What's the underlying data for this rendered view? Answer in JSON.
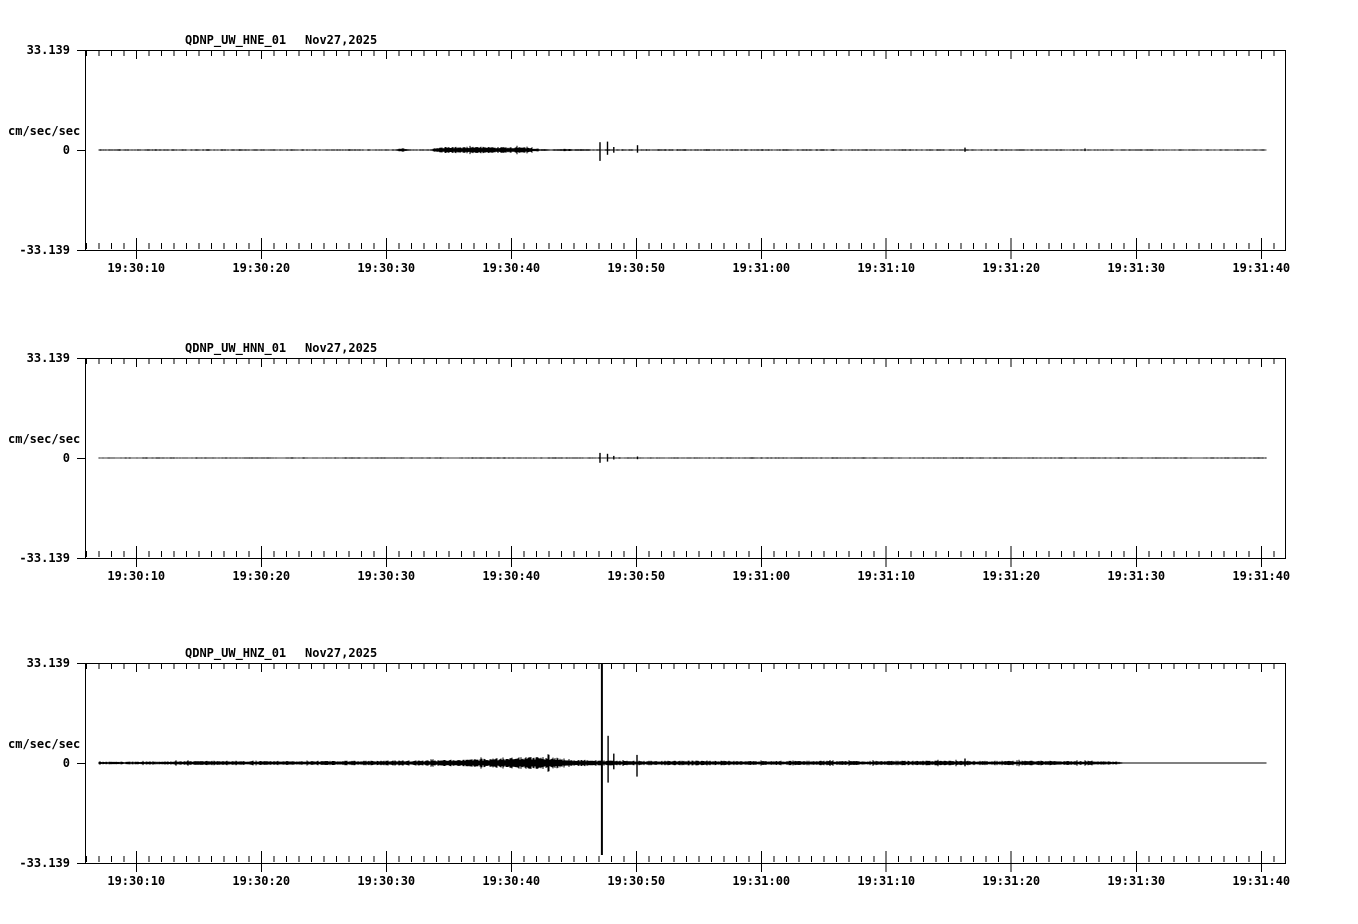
{
  "page": {
    "background_color": "#ffffff",
    "trace_color": "#000000"
  },
  "y_axis": {
    "label": "cm/sec/sec",
    "max_label": "33.139",
    "zero_label": "0",
    "min_label": "-33.139",
    "ylim": [
      -33.139,
      33.139
    ]
  },
  "x_axis": {
    "start_sec_offset": 5.9,
    "end_sec_offset": 101.9,
    "minor_tick_sec": 1,
    "major_tick_sec": 10,
    "tick_labels": [
      {
        "sec": 10,
        "label": "19:30:10"
      },
      {
        "sec": 20,
        "label": "19:30:20"
      },
      {
        "sec": 30,
        "label": "19:30:30"
      },
      {
        "sec": 40,
        "label": "19:30:40"
      },
      {
        "sec": 50,
        "label": "19:30:50"
      },
      {
        "sec": 60,
        "label": "19:31:00"
      },
      {
        "sec": 70,
        "label": "19:31:10"
      },
      {
        "sec": 80,
        "label": "19:31:20"
      },
      {
        "sec": 90,
        "label": "19:31:30"
      },
      {
        "sec": 100,
        "label": "19:31:40"
      }
    ]
  },
  "chart_data": [
    {
      "type": "line",
      "title": "QDNP_UW_HNE_01",
      "date": "Nov27,2025",
      "ylabel": "cm/sec/sec",
      "ylim": [
        -33.139,
        33.139
      ],
      "trace_start_sec": 7.0,
      "trace_end_sec": 100.4,
      "seed": 11,
      "envelope": [
        [
          7,
          0.18
        ],
        [
          30.8,
          0.18
        ],
        [
          31.3,
          0.55
        ],
        [
          31.8,
          0.18
        ],
        [
          33.6,
          0.2
        ],
        [
          34.2,
          0.72
        ],
        [
          35.5,
          0.8
        ],
        [
          38.5,
          0.82
        ],
        [
          41.2,
          0.7
        ],
        [
          42.2,
          0.25
        ],
        [
          43.6,
          0.2
        ],
        [
          44.4,
          0.32
        ],
        [
          45.0,
          0.2
        ],
        [
          45.8,
          0.28
        ],
        [
          46.3,
          0.18
        ],
        [
          100.4,
          0.16
        ]
      ],
      "spikes": [
        [
          47.1,
          2.6,
          3.6
        ],
        [
          47.7,
          2.8,
          1.6
        ],
        [
          48.2,
          1.0,
          0.9
        ],
        [
          50.1,
          1.6,
          0.9
        ],
        [
          76.3,
          0.8,
          0.6
        ],
        [
          85.9,
          0.5,
          0.35
        ]
      ]
    },
    {
      "type": "line",
      "title": "QDNP_UW_HNN_01",
      "date": "Nov27,2025",
      "ylabel": "cm/sec/sec",
      "ylim": [
        -33.139,
        33.139
      ],
      "trace_start_sec": 7.0,
      "trace_end_sec": 100.4,
      "seed": 22,
      "envelope": [
        [
          7,
          0.15
        ],
        [
          100.4,
          0.15
        ]
      ],
      "spikes": [
        [
          47.1,
          1.7,
          1.6
        ],
        [
          47.7,
          1.4,
          1.2
        ],
        [
          48.2,
          0.7,
          0.5
        ],
        [
          50.1,
          0.5,
          0.4
        ]
      ]
    },
    {
      "type": "line",
      "title": "QDNP_UW_HNZ_01",
      "date": "Nov27,2025",
      "ylabel": "cm/sec/sec",
      "ylim": [
        -33.139,
        33.139
      ],
      "trace_start_sec": 7.0,
      "trace_end_sec": 100.4,
      "seed": 33,
      "envelope": [
        [
          7,
          0.35
        ],
        [
          12,
          0.4
        ],
        [
          14,
          0.5
        ],
        [
          16,
          0.62
        ],
        [
          17.5,
          0.45
        ],
        [
          20,
          0.55
        ],
        [
          23,
          0.45
        ],
        [
          26,
          0.55
        ],
        [
          29,
          0.6
        ],
        [
          31,
          0.68
        ],
        [
          33,
          0.62
        ],
        [
          34.5,
          0.8
        ],
        [
          36,
          0.9
        ],
        [
          38,
          1.1
        ],
        [
          39.5,
          1.3
        ],
        [
          41,
          1.6
        ],
        [
          43,
          1.55
        ],
        [
          44.2,
          1.15
        ],
        [
          45,
          0.85
        ],
        [
          46.4,
          0.7
        ],
        [
          48.5,
          0.62
        ],
        [
          52,
          0.58
        ],
        [
          56,
          0.62
        ],
        [
          60,
          0.52
        ],
        [
          64,
          0.58
        ],
        [
          68,
          0.52
        ],
        [
          72,
          0.58
        ],
        [
          75.5,
          0.62
        ],
        [
          78,
          0.55
        ],
        [
          81,
          0.58
        ],
        [
          84,
          0.52
        ],
        [
          87,
          0.48
        ],
        [
          88.6,
          0.35
        ],
        [
          89.1,
          0.1
        ],
        [
          100.4,
          0.1
        ]
      ],
      "spikes": [
        [
          47.25,
          33.139,
          30.5
        ],
        [
          47.75,
          9.0,
          6.5
        ],
        [
          48.2,
          3.1,
          2.1
        ],
        [
          50.06,
          2.7,
          4.5
        ],
        [
          76.3,
          1.5,
          1.1
        ]
      ]
    }
  ]
}
